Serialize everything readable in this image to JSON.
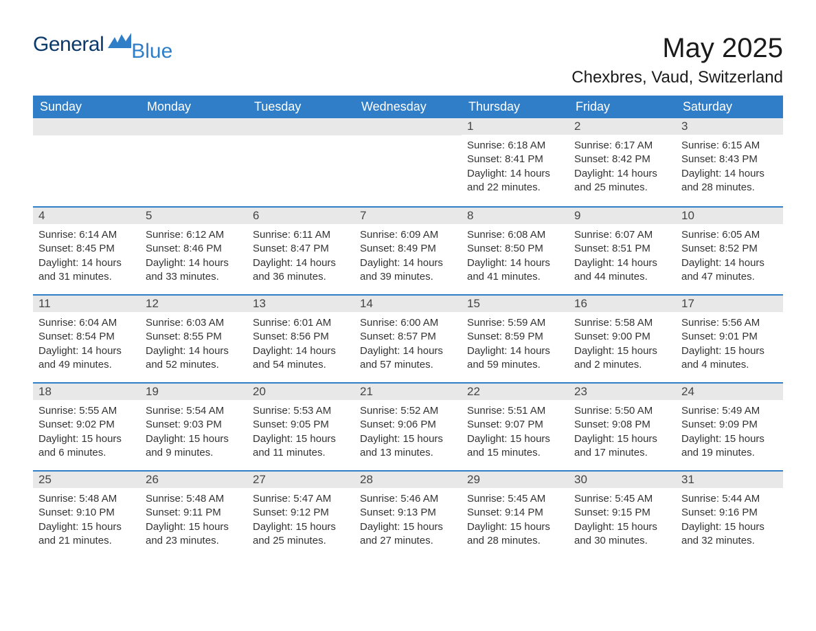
{
  "logo": {
    "part1": "General",
    "part2": "Blue"
  },
  "title": "May 2025",
  "location": "Chexbres, Vaud, Switzerland",
  "dayHeaders": [
    "Sunday",
    "Monday",
    "Tuesday",
    "Wednesday",
    "Thursday",
    "Friday",
    "Saturday"
  ],
  "labels": {
    "sunrise": "Sunrise",
    "sunset": "Sunset",
    "daylight": "Daylight"
  },
  "colors": {
    "headerBg": "#2f7ec7",
    "headerText": "#ffffff",
    "dayBarBg": "#e8e8e8",
    "dayBarBorder": "#2f7ec7",
    "bodyText": "#333333",
    "logoDark": "#0b3a6b",
    "logoLight": "#2f7ec7",
    "background": "#ffffff"
  },
  "typography": {
    "titleFontSize": 40,
    "locationFontSize": 24,
    "headerFontSize": 18,
    "dayNumberFontSize": 17,
    "bodyFontSize": 15,
    "fontFamily": "Arial"
  },
  "weeks": [
    [
      null,
      null,
      null,
      null,
      {
        "day": 1,
        "sunrise": "6:18 AM",
        "sunset": "8:41 PM",
        "daylight": "14 hours and 22 minutes."
      },
      {
        "day": 2,
        "sunrise": "6:17 AM",
        "sunset": "8:42 PM",
        "daylight": "14 hours and 25 minutes."
      },
      {
        "day": 3,
        "sunrise": "6:15 AM",
        "sunset": "8:43 PM",
        "daylight": "14 hours and 28 minutes."
      }
    ],
    [
      {
        "day": 4,
        "sunrise": "6:14 AM",
        "sunset": "8:45 PM",
        "daylight": "14 hours and 31 minutes."
      },
      {
        "day": 5,
        "sunrise": "6:12 AM",
        "sunset": "8:46 PM",
        "daylight": "14 hours and 33 minutes."
      },
      {
        "day": 6,
        "sunrise": "6:11 AM",
        "sunset": "8:47 PM",
        "daylight": "14 hours and 36 minutes."
      },
      {
        "day": 7,
        "sunrise": "6:09 AM",
        "sunset": "8:49 PM",
        "daylight": "14 hours and 39 minutes."
      },
      {
        "day": 8,
        "sunrise": "6:08 AM",
        "sunset": "8:50 PM",
        "daylight": "14 hours and 41 minutes."
      },
      {
        "day": 9,
        "sunrise": "6:07 AM",
        "sunset": "8:51 PM",
        "daylight": "14 hours and 44 minutes."
      },
      {
        "day": 10,
        "sunrise": "6:05 AM",
        "sunset": "8:52 PM",
        "daylight": "14 hours and 47 minutes."
      }
    ],
    [
      {
        "day": 11,
        "sunrise": "6:04 AM",
        "sunset": "8:54 PM",
        "daylight": "14 hours and 49 minutes."
      },
      {
        "day": 12,
        "sunrise": "6:03 AM",
        "sunset": "8:55 PM",
        "daylight": "14 hours and 52 minutes."
      },
      {
        "day": 13,
        "sunrise": "6:01 AM",
        "sunset": "8:56 PM",
        "daylight": "14 hours and 54 minutes."
      },
      {
        "day": 14,
        "sunrise": "6:00 AM",
        "sunset": "8:57 PM",
        "daylight": "14 hours and 57 minutes."
      },
      {
        "day": 15,
        "sunrise": "5:59 AM",
        "sunset": "8:59 PM",
        "daylight": "14 hours and 59 minutes."
      },
      {
        "day": 16,
        "sunrise": "5:58 AM",
        "sunset": "9:00 PM",
        "daylight": "15 hours and 2 minutes."
      },
      {
        "day": 17,
        "sunrise": "5:56 AM",
        "sunset": "9:01 PM",
        "daylight": "15 hours and 4 minutes."
      }
    ],
    [
      {
        "day": 18,
        "sunrise": "5:55 AM",
        "sunset": "9:02 PM",
        "daylight": "15 hours and 6 minutes."
      },
      {
        "day": 19,
        "sunrise": "5:54 AM",
        "sunset": "9:03 PM",
        "daylight": "15 hours and 9 minutes."
      },
      {
        "day": 20,
        "sunrise": "5:53 AM",
        "sunset": "9:05 PM",
        "daylight": "15 hours and 11 minutes."
      },
      {
        "day": 21,
        "sunrise": "5:52 AM",
        "sunset": "9:06 PM",
        "daylight": "15 hours and 13 minutes."
      },
      {
        "day": 22,
        "sunrise": "5:51 AM",
        "sunset": "9:07 PM",
        "daylight": "15 hours and 15 minutes."
      },
      {
        "day": 23,
        "sunrise": "5:50 AM",
        "sunset": "9:08 PM",
        "daylight": "15 hours and 17 minutes."
      },
      {
        "day": 24,
        "sunrise": "5:49 AM",
        "sunset": "9:09 PM",
        "daylight": "15 hours and 19 minutes."
      }
    ],
    [
      {
        "day": 25,
        "sunrise": "5:48 AM",
        "sunset": "9:10 PM",
        "daylight": "15 hours and 21 minutes."
      },
      {
        "day": 26,
        "sunrise": "5:48 AM",
        "sunset": "9:11 PM",
        "daylight": "15 hours and 23 minutes."
      },
      {
        "day": 27,
        "sunrise": "5:47 AM",
        "sunset": "9:12 PM",
        "daylight": "15 hours and 25 minutes."
      },
      {
        "day": 28,
        "sunrise": "5:46 AM",
        "sunset": "9:13 PM",
        "daylight": "15 hours and 27 minutes."
      },
      {
        "day": 29,
        "sunrise": "5:45 AM",
        "sunset": "9:14 PM",
        "daylight": "15 hours and 28 minutes."
      },
      {
        "day": 30,
        "sunrise": "5:45 AM",
        "sunset": "9:15 PM",
        "daylight": "15 hours and 30 minutes."
      },
      {
        "day": 31,
        "sunrise": "5:44 AM",
        "sunset": "9:16 PM",
        "daylight": "15 hours and 32 minutes."
      }
    ]
  ]
}
